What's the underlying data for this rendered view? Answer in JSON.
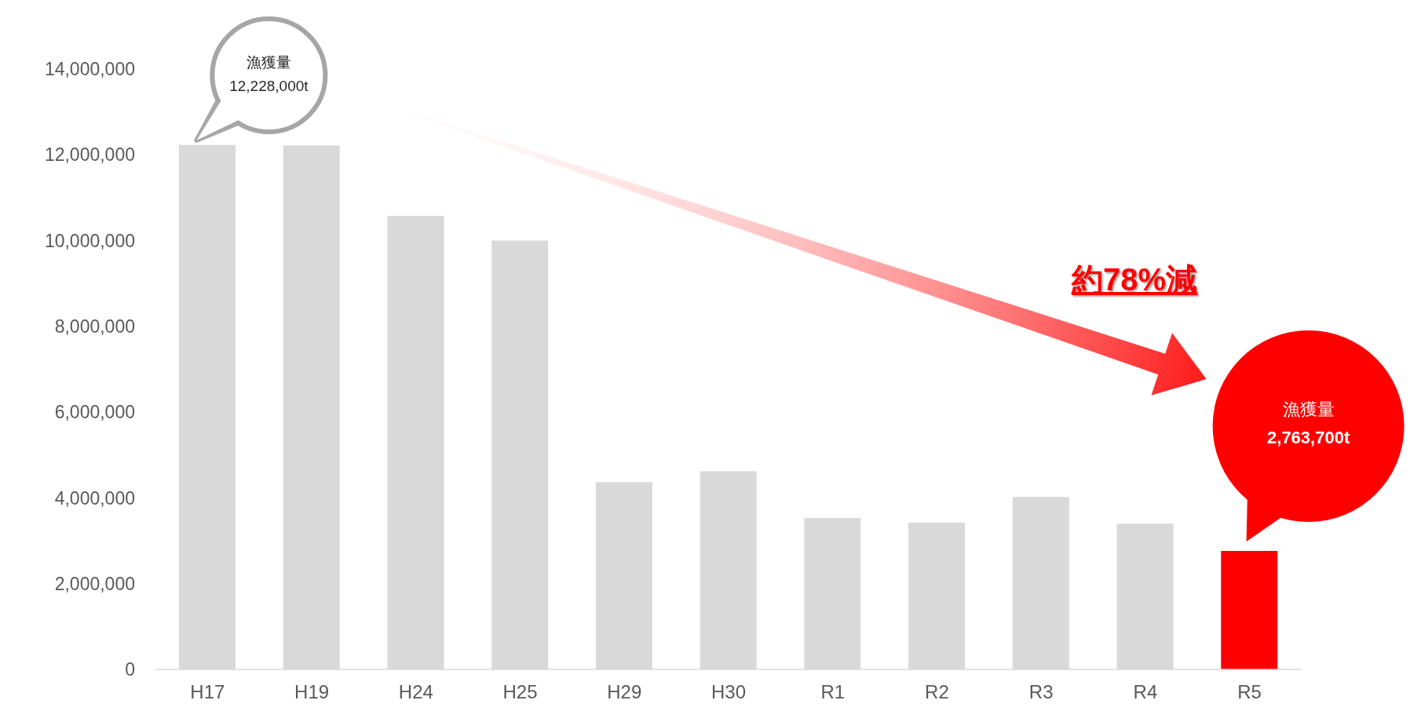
{
  "chart_data": {
    "type": "bar",
    "categories": [
      "H17",
      "H19",
      "H24",
      "H25",
      "H29",
      "H30",
      "R1",
      "R2",
      "R3",
      "R4",
      "R5"
    ],
    "values": [
      12228000,
      12220000,
      10580000,
      10000000,
      4370000,
      4620000,
      3530000,
      3420000,
      4020000,
      3400000,
      2763700
    ],
    "colors": [
      "#d9d9d9",
      "#d9d9d9",
      "#d9d9d9",
      "#d9d9d9",
      "#d9d9d9",
      "#d9d9d9",
      "#d9d9d9",
      "#d9d9d9",
      "#d9d9d9",
      "#d9d9d9",
      "#ff0000"
    ],
    "ylim": [
      0,
      14000000
    ],
    "yticks": [
      0,
      {
        "value": 2000000,
        "label": "2,000,000"
      },
      {
        "value": 4000000,
        "label": "4,000,000"
      },
      {
        "value": 6000000,
        "label": "6,000,000"
      },
      {
        "value": 8000000,
        "label": "8,000,000"
      },
      {
        "value": 10000000,
        "label": "10,000,000"
      },
      {
        "value": 12000000,
        "label": "12,000,000"
      },
      {
        "value": 14000000,
        "label": "14,000,000"
      }
    ],
    "grid": false,
    "legend": false,
    "annotations": [
      "漁獲量\n12,228,000t",
      "漁獲量\n2,763,700t",
      "約78%減"
    ]
  }
}
